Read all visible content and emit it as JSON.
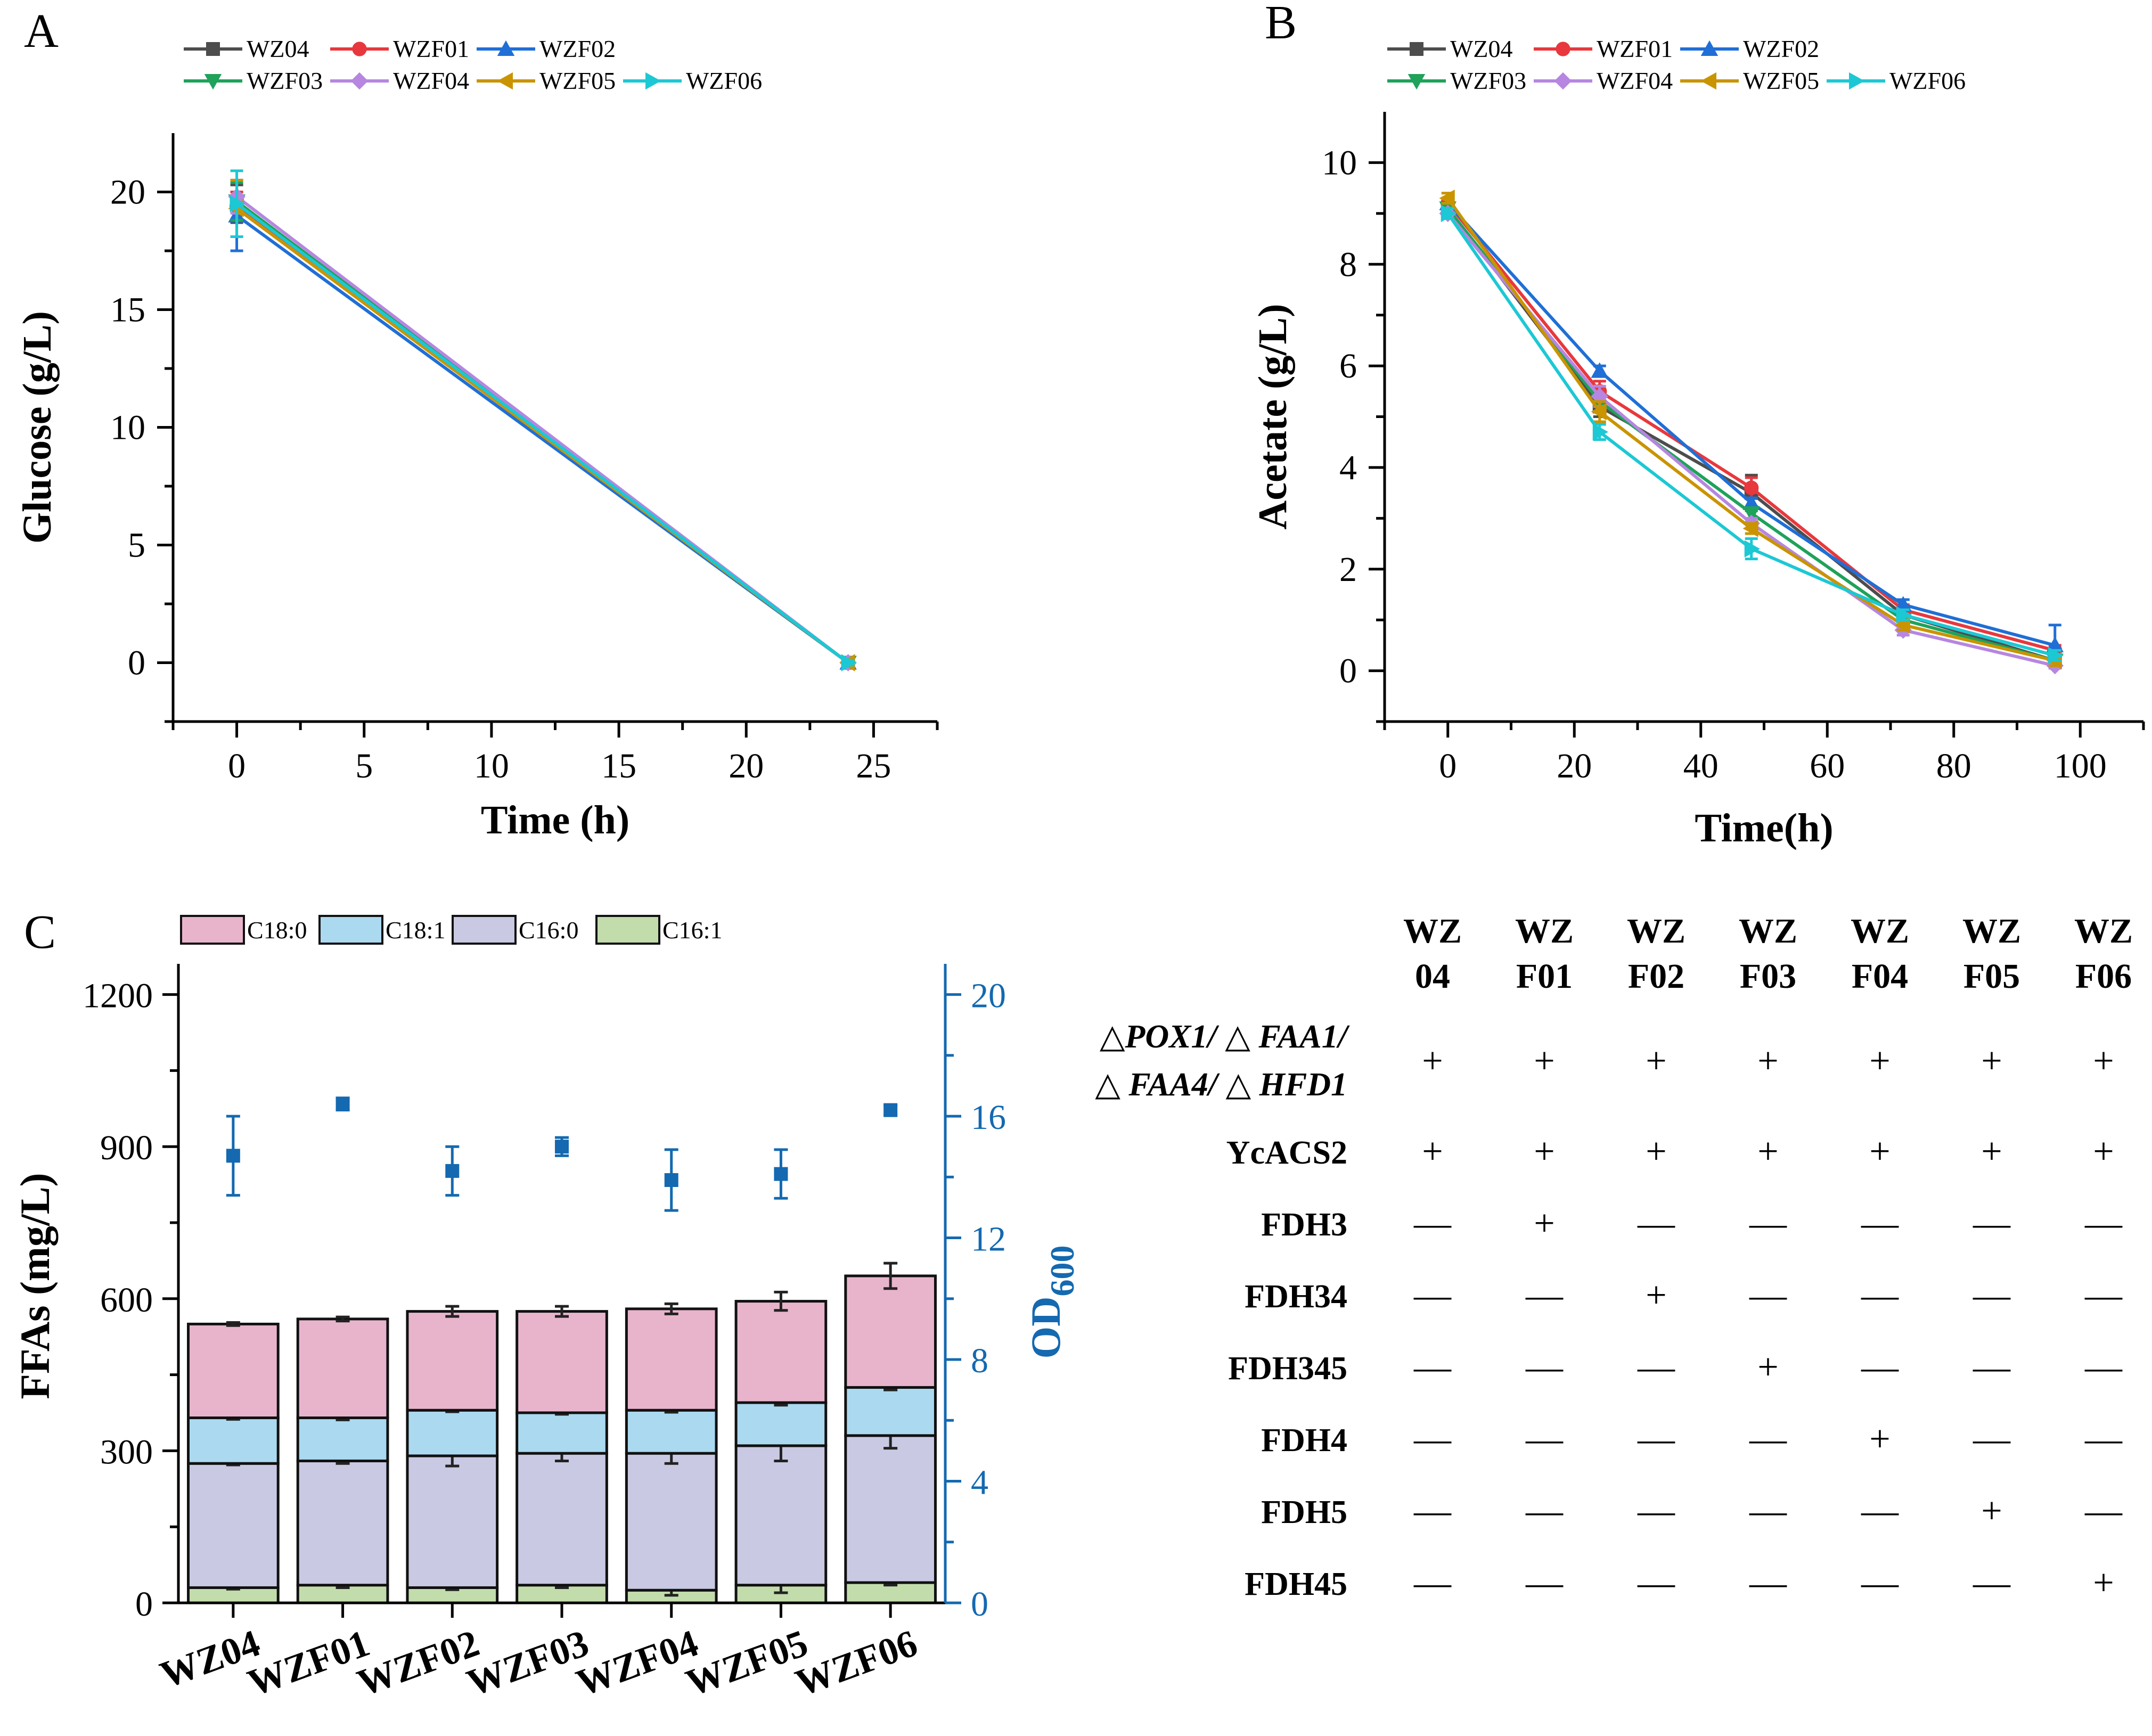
{
  "panels": {
    "a": "A",
    "b": "B",
    "c": "C"
  },
  "colors": {
    "WZ04": "#4d4d4d",
    "WZF01": "#e8383d",
    "WZF02": "#1f6fd6",
    "WZF03": "#1fa25a",
    "WZF04": "#b686e0",
    "WZF05": "#c99400",
    "WZF06": "#1cc8d4",
    "C18:0": "#e8b4cc",
    "C18:1": "#aad9f0",
    "C16:0": "#c9c9e3",
    "C16:1": "#c2dcac",
    "od": "#1469b0"
  },
  "chart_data": [
    {
      "id": "A",
      "type": "line",
      "xlabel": "Time (h)",
      "ylabel": "Glucose (g/L)",
      "xlim": [
        -2.5,
        27.5
      ],
      "ylim": [
        -2.5,
        22.5
      ],
      "xticks": [
        0,
        5,
        10,
        15,
        20,
        25
      ],
      "yticks": [
        0,
        5,
        10,
        15,
        20
      ],
      "legend": [
        "WZ04",
        "WZF01",
        "WZF02",
        "WZF03",
        "WZF04",
        "WZF05",
        "WZF06"
      ],
      "legend_placement": "top",
      "series": [
        {
          "name": "WZ04",
          "marker": "square",
          "x": [
            0,
            24
          ],
          "y": [
            19.5,
            0
          ],
          "err": [
            0.8,
            0.1
          ]
        },
        {
          "name": "WZF01",
          "marker": "circle",
          "x": [
            0,
            24
          ],
          "y": [
            19.4,
            0
          ],
          "err": [
            0.6,
            0.1
          ]
        },
        {
          "name": "WZF02",
          "marker": "triangle-up",
          "x": [
            0,
            24
          ],
          "y": [
            19.0,
            0
          ],
          "err": [
            1.5,
            0.1
          ]
        },
        {
          "name": "WZF03",
          "marker": "triangle-down",
          "x": [
            0,
            24
          ],
          "y": [
            19.6,
            0
          ],
          "err": [
            0.8,
            0.1
          ]
        },
        {
          "name": "WZF04",
          "marker": "diamond",
          "x": [
            0,
            24
          ],
          "y": [
            19.8,
            0
          ],
          "err": [
            0.7,
            0.1
          ]
        },
        {
          "name": "WZF05",
          "marker": "triangle-left",
          "x": [
            0,
            24
          ],
          "y": [
            19.3,
            0
          ],
          "err": [
            1.2,
            0.1
          ]
        },
        {
          "name": "WZF06",
          "marker": "triangle-right",
          "x": [
            0,
            24
          ],
          "y": [
            19.5,
            0
          ],
          "err": [
            1.4,
            0.1
          ]
        }
      ]
    },
    {
      "id": "B",
      "type": "line",
      "xlabel": "Time(h)",
      "ylabel": "Acetate (g/L)",
      "xlim": [
        -10,
        110
      ],
      "ylim": [
        -1,
        11
      ],
      "xticks": [
        0,
        20,
        40,
        60,
        80,
        100
      ],
      "yticks": [
        0,
        2,
        4,
        6,
        8,
        10
      ],
      "legend": [
        "WZ04",
        "WZF01",
        "WZF02",
        "WZF03",
        "WZF04",
        "WZF05",
        "WZF06"
      ],
      "legend_placement": "top",
      "series": [
        {
          "name": "WZ04",
          "marker": "square",
          "x": [
            0,
            24,
            48,
            72,
            96
          ],
          "y": [
            9.1,
            5.2,
            3.5,
            1.1,
            0.2
          ],
          "err": [
            0.15,
            0.2,
            0.35,
            0.1,
            0.1
          ]
        },
        {
          "name": "WZF01",
          "marker": "circle",
          "x": [
            0,
            24,
            48,
            72,
            96
          ],
          "y": [
            9.2,
            5.5,
            3.6,
            1.2,
            0.4
          ],
          "err": [
            0.1,
            0.2,
            0.2,
            0.1,
            0.1
          ]
        },
        {
          "name": "WZF02",
          "marker": "triangle-up",
          "x": [
            0,
            24,
            48,
            72,
            96
          ],
          "y": [
            9.2,
            5.9,
            3.3,
            1.3,
            0.5
          ],
          "err": [
            0.1,
            0.1,
            0.1,
            0.1,
            0.4
          ]
        },
        {
          "name": "WZF03",
          "marker": "triangle-down",
          "x": [
            0,
            24,
            48,
            72,
            96
          ],
          "y": [
            9.1,
            5.3,
            3.1,
            1.0,
            0.2
          ],
          "err": [
            0.1,
            0.1,
            0.1,
            0.1,
            0.1
          ]
        },
        {
          "name": "WZF04",
          "marker": "diamond",
          "x": [
            0,
            24,
            48,
            72,
            96
          ],
          "y": [
            9.0,
            5.4,
            2.9,
            0.8,
            0.1
          ],
          "err": [
            0.1,
            0.2,
            0.1,
            0.1,
            0.05
          ]
        },
        {
          "name": "WZF05",
          "marker": "triangle-left",
          "x": [
            0,
            24,
            48,
            72,
            96
          ],
          "y": [
            9.3,
            5.1,
            2.8,
            0.9,
            0.2
          ],
          "err": [
            0.1,
            0.2,
            0.1,
            0.1,
            0.1
          ]
        },
        {
          "name": "WZF06",
          "marker": "triangle-right",
          "x": [
            0,
            24,
            48,
            72,
            96
          ],
          "y": [
            9.0,
            4.7,
            2.4,
            1.1,
            0.3
          ],
          "err": [
            0.1,
            0.15,
            0.2,
            0.1,
            0.1
          ]
        }
      ]
    },
    {
      "id": "C",
      "type": "bar",
      "stacked": true,
      "ylabel": "FFAs (mg/L)",
      "y2label": "OD600",
      "y2label_main": "OD",
      "y2label_sub": "600",
      "ylim": [
        0,
        1250
      ],
      "y2lim": [
        0,
        20.8333
      ],
      "yticks": [
        0,
        300,
        600,
        900,
        1200
      ],
      "y2ticks": [
        0,
        4,
        8,
        12,
        16,
        20
      ],
      "categories": [
        "WZ04",
        "WZF01",
        "WZF02",
        "WZF03",
        "WZF04",
        "WZF05",
        "WZF06"
      ],
      "legend": [
        "C18:0",
        "C18:1",
        "C16:0",
        "C16:1"
      ],
      "legend_placement": "top",
      "series": [
        {
          "name": "C16:1",
          "values": [
            30,
            35,
            30,
            35,
            25,
            35,
            40
          ],
          "err": [
            3,
            5,
            4,
            5,
            10,
            15,
            5
          ]
        },
        {
          "name": "C16:0",
          "values": [
            245,
            245,
            260,
            260,
            270,
            275,
            290
          ],
          "err": [
            3,
            5,
            20,
            15,
            20,
            30,
            25
          ]
        },
        {
          "name": "C18:1",
          "values": [
            90,
            85,
            90,
            80,
            85,
            85,
            95
          ],
          "err": [
            3,
            4,
            3,
            3,
            4,
            5,
            5
          ]
        },
        {
          "name": "C18:0",
          "values": [
            185,
            195,
            195,
            200,
            200,
            200,
            220
          ],
          "err": [
            3,
            4,
            10,
            10,
            10,
            18,
            25
          ]
        }
      ],
      "od600": {
        "values": [
          14.7,
          16.4,
          14.2,
          15.0,
          13.9,
          14.1,
          16.2
        ],
        "err": [
          1.3,
          0.2,
          0.8,
          0.3,
          1.0,
          0.8,
          0.15
        ]
      }
    }
  ],
  "table": {
    "headers": [
      {
        "line1": "WZ",
        "line2": "04"
      },
      {
        "line1": "WZ",
        "line2": "F01"
      },
      {
        "line1": "WZ",
        "line2": "F02"
      },
      {
        "line1": "WZ",
        "line2": "F03"
      },
      {
        "line1": "WZ",
        "line2": "F04"
      },
      {
        "line1": "WZ",
        "line2": "F05"
      },
      {
        "line1": "WZ",
        "line2": "F06"
      }
    ],
    "rows": [
      {
        "label_lines": [
          "△POX1/ △ FAA1/",
          "△ FAA4/ △ HFD1"
        ],
        "italic": true,
        "values": [
          "+",
          "+",
          "+",
          "+",
          "+",
          "+",
          "+"
        ]
      },
      {
        "label_lines": [
          "YcACS2"
        ],
        "italic": false,
        "values": [
          "+",
          "+",
          "+",
          "+",
          "+",
          "+",
          "+"
        ]
      },
      {
        "label_lines": [
          "FDH3"
        ],
        "italic": false,
        "values": [
          "—",
          "+",
          "—",
          "—",
          "—",
          "—",
          "—"
        ]
      },
      {
        "label_lines": [
          "FDH34"
        ],
        "italic": false,
        "values": [
          "—",
          "—",
          "+",
          "—",
          "—",
          "—",
          "—"
        ]
      },
      {
        "label_lines": [
          "FDH345"
        ],
        "italic": false,
        "values": [
          "—",
          "—",
          "—",
          "+",
          "—",
          "—",
          "—"
        ]
      },
      {
        "label_lines": [
          "FDH4"
        ],
        "italic": false,
        "values": [
          "—",
          "—",
          "—",
          "—",
          "+",
          "—",
          "—"
        ]
      },
      {
        "label_lines": [
          "FDH5"
        ],
        "italic": false,
        "values": [
          "—",
          "—",
          "—",
          "—",
          "—",
          "+",
          "—"
        ]
      },
      {
        "label_lines": [
          "FDH45"
        ],
        "italic": false,
        "values": [
          "—",
          "—",
          "—",
          "—",
          "—",
          "—",
          "+"
        ]
      }
    ]
  }
}
